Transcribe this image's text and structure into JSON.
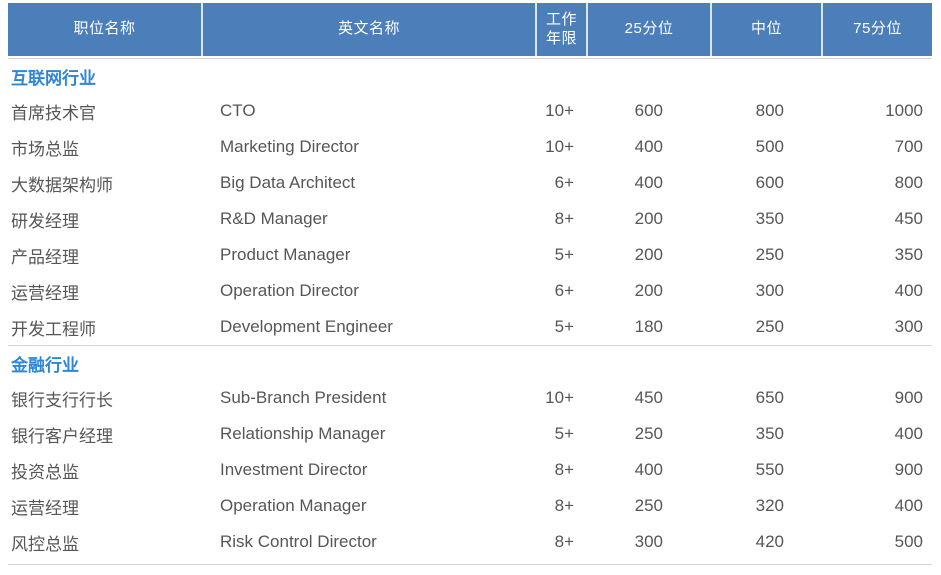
{
  "colors": {
    "header_bg": "#4C7EB9",
    "header_text": "#FFFFFF",
    "header_separator": "#DCE6F1",
    "section_label_text": "#2E86D8",
    "body_text": "#565656",
    "divider": "#D5D5D5"
  },
  "table": {
    "columns": [
      {
        "label": "职位名称"
      },
      {
        "label": "英文名称"
      },
      {
        "label": "工作\n年限"
      },
      {
        "label": "25分位"
      },
      {
        "label": "中位"
      },
      {
        "label": "75分位"
      }
    ],
    "sections": [
      {
        "id": "internet",
        "name": "互联网行业",
        "rows": [
          {
            "position_cn": "首席技术官",
            "position_en": "CTO",
            "years": "10+",
            "p25": "600",
            "median": "800",
            "p75": "1000"
          },
          {
            "position_cn": "市场总监",
            "position_en": "Marketing Director",
            "years": "10+",
            "p25": "400",
            "median": "500",
            "p75": "700"
          },
          {
            "position_cn": "大数据架构师",
            "position_en": "Big Data Architect",
            "years": "6+",
            "p25": "400",
            "median": "600",
            "p75": "800"
          },
          {
            "position_cn": "研发经理",
            "position_en": "R&D Manager",
            "years": "8+",
            "p25": "200",
            "median": "350",
            "p75": "450"
          },
          {
            "position_cn": "产品经理",
            "position_en": "Product Manager",
            "years": "5+",
            "p25": "200",
            "median": "250",
            "p75": "350"
          },
          {
            "position_cn": "运营经理",
            "position_en": "Operation Director",
            "years": "6+",
            "p25": "200",
            "median": "300",
            "p75": "400"
          },
          {
            "position_cn": "开发工程师",
            "position_en": "Development Engineer",
            "years": "5+",
            "p25": "180",
            "median": "250",
            "p75": "300"
          }
        ]
      },
      {
        "id": "finance",
        "name": "金融行业",
        "rows": [
          {
            "position_cn": "银行支行行长",
            "position_en": "Sub-Branch President",
            "years": "10+",
            "p25": "450",
            "median": "650",
            "p75": "900"
          },
          {
            "position_cn": "银行客户经理",
            "position_en": "Relationship Manager",
            "years": "5+",
            "p25": "250",
            "median": "350",
            "p75": "400"
          },
          {
            "position_cn": "投资总监",
            "position_en": "Investment Director",
            "years": "8+",
            "p25": "400",
            "median": "550",
            "p75": "900"
          },
          {
            "position_cn": "运营经理",
            "position_en": "Operation Manager",
            "years": "8+",
            "p25": "250",
            "median": "320",
            "p75": "400"
          },
          {
            "position_cn": "风控总监",
            "position_en": "Risk Control Director",
            "years": "8+",
            "p25": "300",
            "median": "420",
            "p75": "500"
          }
        ]
      }
    ]
  }
}
